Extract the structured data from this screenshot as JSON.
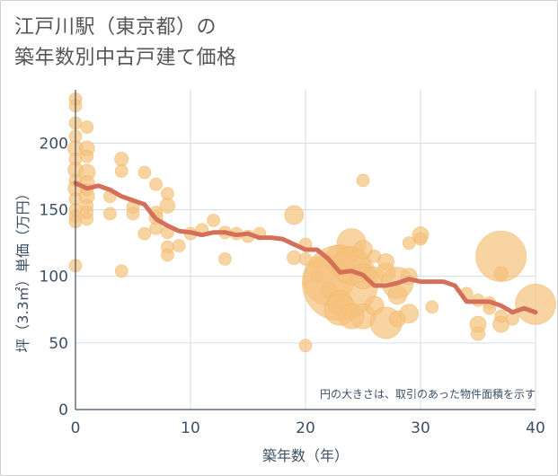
{
  "title_line1": "江戸川駅（東京都）の",
  "title_line2": "築年数別中古戸建て価格",
  "chart_data": {
    "type": "scatter",
    "xlabel": "築年数（年）",
    "ylabel": "坪（3.3㎡）単価（万円）",
    "xlim": [
      0,
      40
    ],
    "ylim": [
      0,
      240
    ],
    "xticks": [
      0,
      10,
      20,
      30,
      40
    ],
    "yticks": [
      0,
      50,
      100,
      150,
      200
    ],
    "grid": true,
    "annotation": "円の大きさは、取引のあった物件面積を示す",
    "bubble_color": "#f5c27c",
    "line_color": "#d4705a",
    "points": [
      {
        "x": 0,
        "y": 233,
        "s": 1
      },
      {
        "x": 0,
        "y": 228,
        "s": 1
      },
      {
        "x": 0,
        "y": 215,
        "s": 1
      },
      {
        "x": 0,
        "y": 205,
        "s": 1
      },
      {
        "x": 0,
        "y": 196,
        "s": 1.2
      },
      {
        "x": 0,
        "y": 188,
        "s": 1
      },
      {
        "x": 0,
        "y": 180,
        "s": 1.2
      },
      {
        "x": 0,
        "y": 172,
        "s": 1
      },
      {
        "x": 0,
        "y": 166,
        "s": 1.2
      },
      {
        "x": 0,
        "y": 158,
        "s": 1
      },
      {
        "x": 0,
        "y": 150,
        "s": 1
      },
      {
        "x": 0,
        "y": 145,
        "s": 1
      },
      {
        "x": 0,
        "y": 141,
        "s": 1
      },
      {
        "x": 0,
        "y": 108,
        "s": 1
      },
      {
        "x": 1,
        "y": 212,
        "s": 1
      },
      {
        "x": 1,
        "y": 196,
        "s": 1.2
      },
      {
        "x": 1,
        "y": 190,
        "s": 1
      },
      {
        "x": 1,
        "y": 178,
        "s": 1.3
      },
      {
        "x": 1,
        "y": 170,
        "s": 1.2
      },
      {
        "x": 1,
        "y": 165,
        "s": 1
      },
      {
        "x": 1,
        "y": 160,
        "s": 1.2
      },
      {
        "x": 1,
        "y": 153,
        "s": 1
      },
      {
        "x": 1,
        "y": 148,
        "s": 1
      },
      {
        "x": 1,
        "y": 143,
        "s": 1
      },
      {
        "x": 3,
        "y": 160,
        "s": 1
      },
      {
        "x": 3,
        "y": 147,
        "s": 1
      },
      {
        "x": 4,
        "y": 188,
        "s": 1.1
      },
      {
        "x": 4,
        "y": 179,
        "s": 1
      },
      {
        "x": 4,
        "y": 104,
        "s": 1
      },
      {
        "x": 5,
        "y": 152,
        "s": 1
      },
      {
        "x": 5,
        "y": 147,
        "s": 1
      },
      {
        "x": 6,
        "y": 178,
        "s": 1
      },
      {
        "x": 6,
        "y": 132,
        "s": 1
      },
      {
        "x": 7,
        "y": 169,
        "s": 1
      },
      {
        "x": 7,
        "y": 148,
        "s": 1
      },
      {
        "x": 7,
        "y": 144,
        "s": 1.1
      },
      {
        "x": 7,
        "y": 136,
        "s": 1
      },
      {
        "x": 8,
        "y": 162,
        "s": 1
      },
      {
        "x": 8,
        "y": 153,
        "s": 1.2
      },
      {
        "x": 8,
        "y": 133,
        "s": 1
      },
      {
        "x": 8,
        "y": 122,
        "s": 1
      },
      {
        "x": 8,
        "y": 116,
        "s": 1
      },
      {
        "x": 9,
        "y": 123,
        "s": 1
      },
      {
        "x": 10,
        "y": 132,
        "s": 1
      },
      {
        "x": 11,
        "y": 135,
        "s": 1
      },
      {
        "x": 12,
        "y": 142,
        "s": 1
      },
      {
        "x": 13,
        "y": 133,
        "s": 1
      },
      {
        "x": 13,
        "y": 113,
        "s": 1
      },
      {
        "x": 14,
        "y": 132,
        "s": 1
      },
      {
        "x": 15,
        "y": 130,
        "s": 1
      },
      {
        "x": 16,
        "y": 132,
        "s": 1
      },
      {
        "x": 19,
        "y": 146,
        "s": 1.5
      },
      {
        "x": 19,
        "y": 114,
        "s": 1.1
      },
      {
        "x": 20,
        "y": 124,
        "s": 1
      },
      {
        "x": 20,
        "y": 113,
        "s": 1
      },
      {
        "x": 20,
        "y": 48,
        "s": 1
      },
      {
        "x": 21,
        "y": 110,
        "s": 1
      },
      {
        "x": 21,
        "y": 100,
        "s": 1
      },
      {
        "x": 22,
        "y": 97,
        "s": 4
      },
      {
        "x": 22,
        "y": 90,
        "s": 1.3
      },
      {
        "x": 23,
        "y": 112,
        "s": 2.5
      },
      {
        "x": 23,
        "y": 95,
        "s": 6
      },
      {
        "x": 23,
        "y": 80,
        "s": 2
      },
      {
        "x": 23,
        "y": 75,
        "s": 2.5
      },
      {
        "x": 24,
        "y": 125,
        "s": 2.3
      },
      {
        "x": 24,
        "y": 108,
        "s": 3
      },
      {
        "x": 24,
        "y": 70,
        "s": 2
      },
      {
        "x": 25,
        "y": 172,
        "s": 1
      },
      {
        "x": 25,
        "y": 120,
        "s": 1.5
      },
      {
        "x": 25,
        "y": 100,
        "s": 2
      },
      {
        "x": 25,
        "y": 70,
        "s": 2
      },
      {
        "x": 26,
        "y": 115,
        "s": 1
      },
      {
        "x": 26,
        "y": 100,
        "s": 1.5
      },
      {
        "x": 26,
        "y": 78,
        "s": 1.5
      },
      {
        "x": 27,
        "y": 111,
        "s": 1.3
      },
      {
        "x": 27,
        "y": 103,
        "s": 1.5
      },
      {
        "x": 27,
        "y": 65,
        "s": 2.5
      },
      {
        "x": 28,
        "y": 95,
        "s": 2.5
      },
      {
        "x": 28,
        "y": 86,
        "s": 1.5
      },
      {
        "x": 28,
        "y": 68,
        "s": 1.3
      },
      {
        "x": 29,
        "y": 100,
        "s": 1.3
      },
      {
        "x": 29,
        "y": 125,
        "s": 1
      },
      {
        "x": 29,
        "y": 72,
        "s": 1.5
      },
      {
        "x": 30,
        "y": 131,
        "s": 1.3
      },
      {
        "x": 30,
        "y": 128,
        "s": 1
      },
      {
        "x": 31,
        "y": 77,
        "s": 1
      },
      {
        "x": 34,
        "y": 87,
        "s": 1
      },
      {
        "x": 35,
        "y": 82,
        "s": 1
      },
      {
        "x": 35,
        "y": 64,
        "s": 1.3
      },
      {
        "x": 35,
        "y": 57,
        "s": 1.1
      },
      {
        "x": 36,
        "y": 80,
        "s": 1
      },
      {
        "x": 36,
        "y": 76,
        "s": 1
      },
      {
        "x": 37,
        "y": 115,
        "s": 4
      },
      {
        "x": 37,
        "y": 102,
        "s": 1.1
      },
      {
        "x": 37,
        "y": 70,
        "s": 1
      },
      {
        "x": 37,
        "y": 64,
        "s": 1.3
      },
      {
        "x": 38,
        "y": 68,
        "s": 1
      },
      {
        "x": 40,
        "y": 79,
        "s": 3.2
      }
    ],
    "line": {
      "x": [
        0,
        1,
        2,
        3,
        4,
        5,
        6,
        7,
        8,
        9,
        10,
        11,
        12,
        13,
        14,
        15,
        16,
        17,
        18,
        19,
        20,
        21,
        22,
        23,
        24,
        25,
        26,
        27,
        28,
        29,
        30,
        31,
        32,
        33,
        34,
        35,
        36,
        37,
        38,
        39,
        40
      ],
      "y": [
        170,
        166,
        168,
        165,
        160,
        157,
        154,
        143,
        138,
        134,
        133,
        131,
        133,
        133,
        131,
        132,
        129,
        129,
        128,
        124,
        120,
        120,
        113,
        103,
        104,
        101,
        93,
        93,
        95,
        98,
        96,
        96,
        96,
        93,
        81,
        81,
        81,
        78,
        73,
        76,
        73
      ]
    }
  }
}
